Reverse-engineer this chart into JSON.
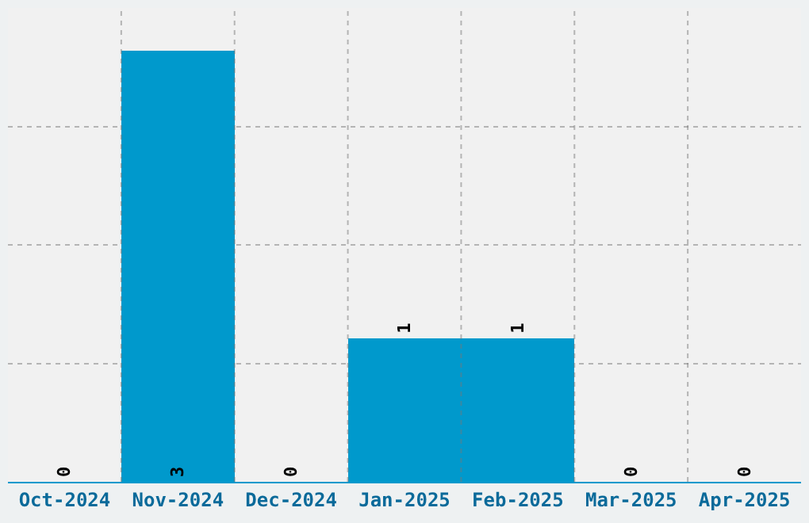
{
  "chart_data": {
    "type": "bar",
    "categories": [
      "Oct-2024",
      "Nov-2024",
      "Dec-2024",
      "Jan-2025",
      "Feb-2025",
      "Mar-2025",
      "Apr-2025"
    ],
    "values": [
      0,
      3,
      0,
      1,
      1,
      0,
      0
    ],
    "color": "#0099cc",
    "grid": true,
    "tick_labels": "x",
    "data_labels": true
  }
}
